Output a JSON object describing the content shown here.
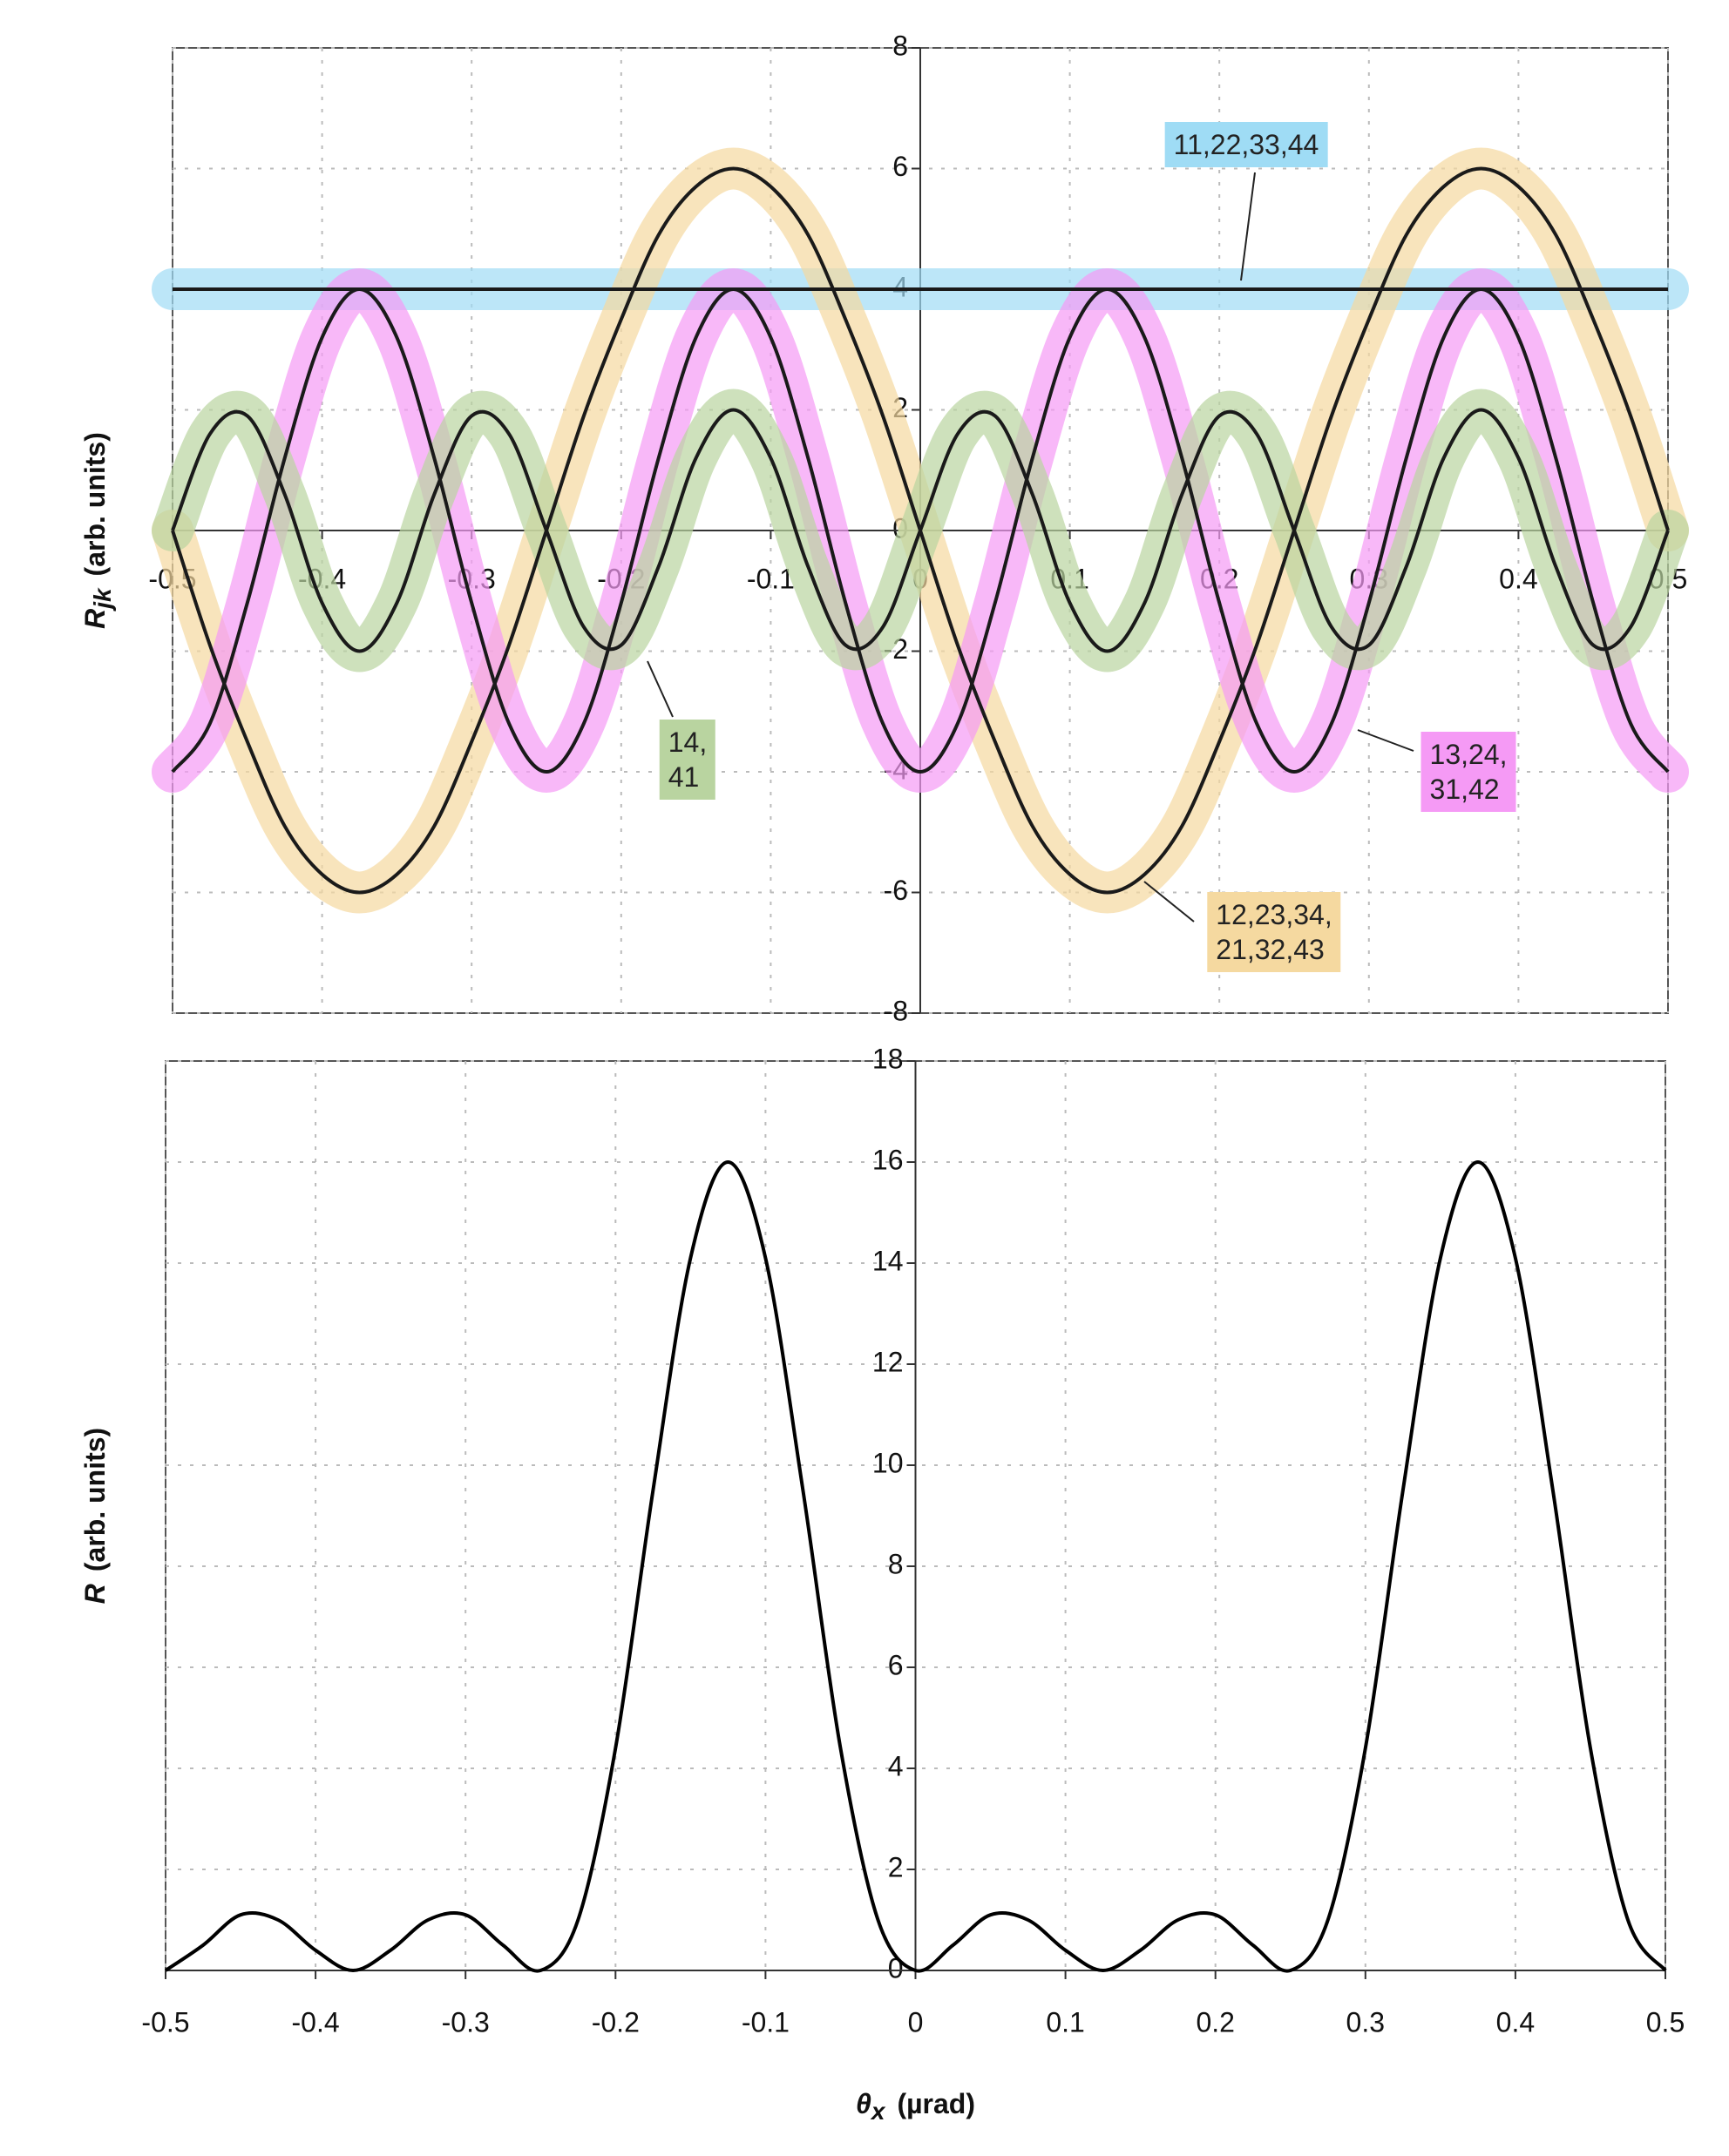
{
  "chart_data": [
    {
      "type": "line",
      "x": [
        -0.5,
        -0.475,
        -0.45,
        -0.425,
        -0.4,
        -0.375,
        -0.35,
        -0.325,
        -0.3,
        -0.275,
        -0.25,
        -0.225,
        -0.2,
        -0.175,
        -0.15,
        -0.125,
        -0.1,
        -0.075,
        -0.05,
        -0.025,
        0,
        0.025,
        0.05,
        0.075,
        0.1,
        0.125,
        0.15,
        0.175,
        0.2,
        0.225,
        0.25,
        0.275,
        0.3,
        0.325,
        0.35,
        0.375,
        0.4,
        0.425,
        0.45,
        0.475,
        0.5
      ],
      "xlim": [
        -0.5,
        0.5
      ],
      "xticks": [
        -0.5,
        -0.4,
        -0.3,
        -0.2,
        -0.1,
        0,
        0.1,
        0.2,
        0.3,
        0.4,
        0.5
      ],
      "ylim": [
        -8,
        8
      ],
      "yticks": [
        -8,
        -6,
        -4,
        -2,
        0,
        2,
        4,
        6,
        8
      ],
      "grid": true,
      "y_label": {
        "symbol": "R",
        "subscript": "jk",
        "text": "(arb. units)"
      },
      "series": [
        {
          "name": "11,22,33,44",
          "color": "#1a1a1a",
          "highlight": "#9fdcf5",
          "values": [
            4,
            4,
            4,
            4,
            4,
            4,
            4,
            4,
            4,
            4,
            4,
            4,
            4,
            4,
            4,
            4,
            4,
            4,
            4,
            4,
            4,
            4,
            4,
            4,
            4,
            4,
            4,
            4,
            4,
            4,
            4,
            4,
            4,
            4,
            4,
            4,
            4,
            4,
            4,
            4,
            4
          ]
        },
        {
          "name": "12,23,34,\n21,32,43",
          "color": "#1a1a1a",
          "highlight": "#f5d9a0",
          "values": [
            0,
            -1.9,
            -3.5,
            -4.9,
            -5.7,
            -6,
            -5.7,
            -4.9,
            -3.5,
            -1.9,
            0,
            1.9,
            3.5,
            4.9,
            5.7,
            6,
            5.7,
            4.9,
            3.5,
            1.9,
            0,
            -1.9,
            -3.5,
            -4.9,
            -5.7,
            -6,
            -5.7,
            -4.9,
            -3.5,
            -1.9,
            0,
            1.9,
            3.5,
            4.9,
            5.7,
            6,
            5.7,
            4.9,
            3.5,
            1.9,
            0
          ]
        },
        {
          "name": "13,24,\n31,42",
          "color": "#1a1a1a",
          "highlight": "#f59af5",
          "values": [
            -4,
            -3.2,
            -1.2,
            1.2,
            3.2,
            4,
            3.2,
            1.2,
            -1.2,
            -3.2,
            -4,
            -3.2,
            -1.2,
            1.2,
            3.2,
            4,
            3.2,
            1.2,
            -1.2,
            -3.2,
            -4,
            -3.2,
            -1.2,
            1.2,
            3.2,
            4,
            3.2,
            1.2,
            -1.2,
            -3.2,
            -4,
            -3.2,
            -1.2,
            1.2,
            3.2,
            4,
            3.2,
            1.2,
            -1.2,
            -3.2,
            -4
          ]
        },
        {
          "name": "14,\n41",
          "color": "#1a1a1a",
          "highlight": "#b9d4a0",
          "values": [
            0,
            1.6,
            1.9,
            0.6,
            -1.2,
            -2,
            -1.2,
            0.6,
            1.9,
            1.6,
            0,
            -1.6,
            -1.9,
            -0.6,
            1.2,
            2,
            1.2,
            -0.6,
            -1.9,
            -1.6,
            0,
            1.6,
            1.9,
            0.6,
            -1.2,
            -2,
            -1.2,
            0.6,
            1.9,
            1.6,
            0,
            -1.6,
            -1.9,
            -0.6,
            1.2,
            2,
            1.2,
            -0.6,
            -1.9,
            -1.6,
            0
          ]
        }
      ]
    },
    {
      "type": "line",
      "x": [
        -0.5,
        -0.475,
        -0.45,
        -0.425,
        -0.4,
        -0.375,
        -0.35,
        -0.325,
        -0.3,
        -0.275,
        -0.25,
        -0.225,
        -0.2,
        -0.175,
        -0.15,
        -0.125,
        -0.1,
        -0.075,
        -0.05,
        -0.025,
        0,
        0.025,
        0.05,
        0.075,
        0.1,
        0.125,
        0.15,
        0.175,
        0.2,
        0.225,
        0.25,
        0.275,
        0.3,
        0.325,
        0.35,
        0.375,
        0.4,
        0.425,
        0.45,
        0.475,
        0.5
      ],
      "xlim": [
        -0.5,
        0.5
      ],
      "xticks": [
        -0.5,
        -0.4,
        -0.3,
        -0.2,
        -0.1,
        0,
        0.1,
        0.2,
        0.3,
        0.4,
        0.5
      ],
      "ylim": [
        0,
        18
      ],
      "yticks": [
        0,
        2,
        4,
        6,
        8,
        10,
        12,
        14,
        16,
        18
      ],
      "grid": true,
      "x_label": {
        "symbol": "θ",
        "subscript": "x",
        "text": "(µrad)"
      },
      "y_label": {
        "symbol": "R",
        "text": "(arb. units)"
      },
      "series": [
        {
          "color": "#000000",
          "values": [
            0,
            0.5,
            1.1,
            1,
            0.4,
            0,
            0.4,
            1,
            1.1,
            0.5,
            0,
            1,
            4.4,
            9.5,
            14.1,
            16,
            14.1,
            9.5,
            4.4,
            1,
            0,
            0.5,
            1.1,
            1,
            0.4,
            0,
            0.4,
            1,
            1.1,
            0.5,
            0,
            1,
            4.4,
            9.5,
            14.1,
            16,
            14.1,
            9.5,
            4.4,
            1,
            0
          ]
        }
      ]
    }
  ]
}
